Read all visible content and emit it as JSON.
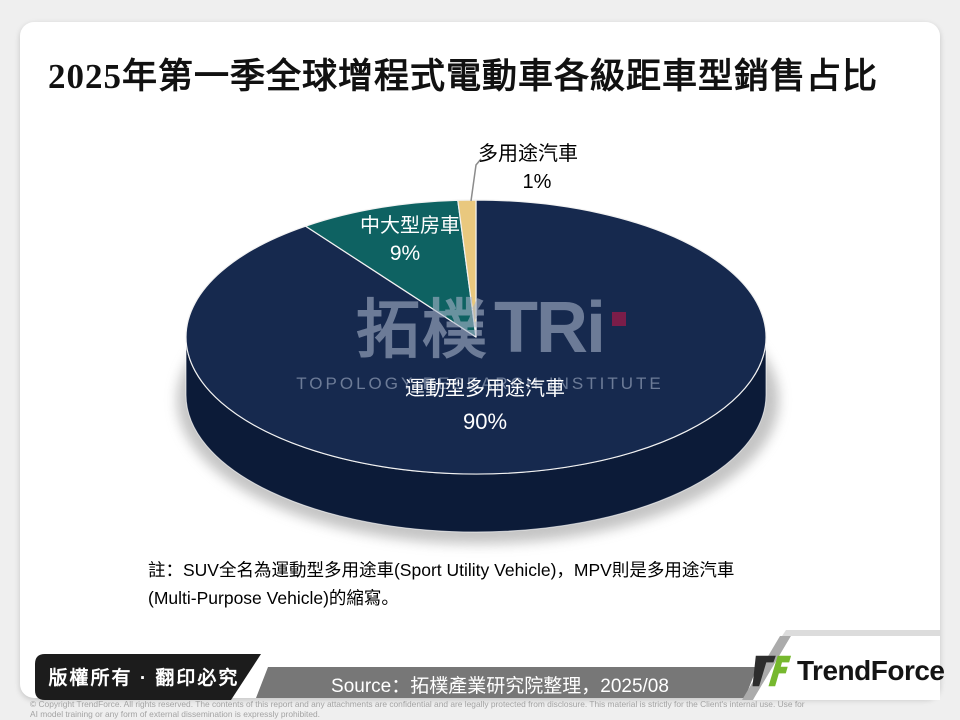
{
  "slide": {
    "title": "2025年第一季全球增程式電動車各級距車型銷售占比",
    "note_line1": "註：SUV全名為運動型多用途車(Sport Utility Vehicle)，MPV則是多用途汽車",
    "note_line2": "(Multi-Purpose Vehicle)的縮寫。"
  },
  "watermark": {
    "cjk": "拓樸",
    "latin": "TRi",
    "subtitle": "TOPOLOGY RESEARCH INSTITUTE"
  },
  "chart_data": {
    "type": "pie",
    "style": "3d",
    "title": "2025年第一季全球增程式電動車各級距車型銷售占比",
    "start_angle_deg": 0,
    "direction": "clockwise",
    "legend_position": "labels-on-chart",
    "slices": [
      {
        "label": "運動型多用途汽車",
        "value": 90,
        "display": "90%",
        "color": "#16294e",
        "side_color": "#0c1b38",
        "label_color": "#ffffff"
      },
      {
        "label": "中大型房車",
        "value": 9,
        "display": "9%",
        "color": "#0e6262",
        "side_color": "#093f3f",
        "label_color": "#ffffff"
      },
      {
        "label": "多用途汽車",
        "value": 1,
        "display": "1%",
        "color": "#e9c87e",
        "side_color": "#b2924f",
        "label_color": "#000000"
      }
    ]
  },
  "footer": {
    "copyright_ribbon": "版權所有 · 翻印必究",
    "source": "Source：拓樸產業研究院整理，2025/08",
    "brand": "TrendForce",
    "disclaimer_line1": "© Copyright TrendForce. All rights reserved. The contents of this report and any attachments are confidential and are legally protected from disclosure. This material is strictly for the Client's internal use. Use for",
    "disclaimer_line2": "AI model training or any form of external dissemination is expressly prohibited."
  },
  "colors": {
    "page_background": "#efefef",
    "card_background": "#ffffff",
    "ribbon_black": "#1c1c1c",
    "source_bar_gray": "#777777",
    "brand_green": "#76b82e",
    "watermark_red": "#7a1d49",
    "title_text": "#111111"
  }
}
